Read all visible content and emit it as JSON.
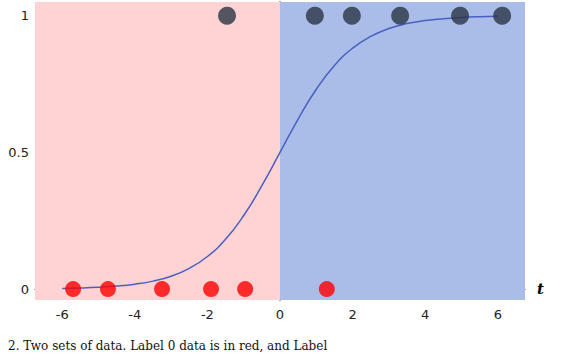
{
  "chart_data": {
    "type": "scatter",
    "xlabel": "t",
    "xlim": [
      -6.75,
      6.75
    ],
    "xticks": [
      -6,
      -4,
      -2,
      0,
      2,
      4,
      6
    ],
    "ylim": [
      -0.04,
      1.05
    ],
    "yticks": [
      0,
      0.5,
      1
    ],
    "grid": true,
    "boundary": 0,
    "annotations": [
      "2. Two sets of data. Label 0 data is in red, and Label"
    ],
    "series": [
      {
        "type": "line",
        "color": "#4a5fc1",
        "line_style": "solid",
        "x": [
          -6,
          -5.5,
          -5,
          -4.5,
          -4,
          -3.5,
          -3,
          -2.5,
          -2,
          -1.5,
          -1,
          -0.5,
          0,
          0.5,
          1,
          1.5,
          2,
          2.5,
          3,
          3.5,
          4,
          4.5,
          5,
          5.5,
          6
        ],
        "values": [
          0.0025,
          0.004,
          0.0067,
          0.011,
          0.018,
          0.029,
          0.047,
          0.076,
          0.119,
          0.182,
          0.269,
          0.378,
          0.5,
          0.622,
          0.731,
          0.818,
          0.881,
          0.924,
          0.953,
          0.971,
          0.982,
          0.989,
          0.9933,
          0.996,
          0.9975
        ]
      },
      {
        "type": "scatter",
        "color": "#ff0000",
        "marker": "circle",
        "x": [
          -5.7,
          -4.74,
          -3.25,
          -1.9,
          -0.96,
          1.29
        ],
        "values": [
          0,
          0,
          0,
          0,
          0,
          0
        ]
      },
      {
        "type": "scatter",
        "color": "#2b3445",
        "marker": "circle",
        "x": [
          -1.46,
          0.96,
          1.98,
          3.31,
          4.96,
          6.12
        ],
        "values": [
          1,
          1,
          1,
          1,
          1,
          1
        ]
      }
    ]
  }
}
